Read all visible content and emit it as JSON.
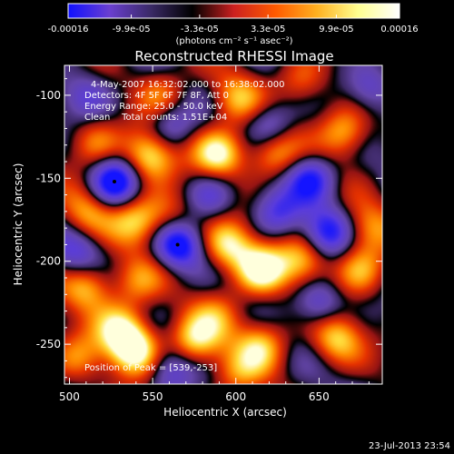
{
  "chart_data": {
    "type": "heatmap",
    "title": "Reconstructed RHESSI Image",
    "xlabel": "Heliocentric X (arcsec)",
    "ylabel": "Heliocentric Y (arcsec)",
    "xlim": [
      497,
      688
    ],
    "ylim": [
      -274,
      -82
    ],
    "xticks": [
      500,
      550,
      600,
      650
    ],
    "yticks": [
      -100,
      -150,
      -200,
      -250
    ],
    "colorbar": {
      "range": [
        -0.00016,
        0.00016
      ],
      "tick_labels": [
        "-0.00016",
        "-9.9e-05",
        "-3.3e-05",
        "3.3e-05",
        "9.9e-05",
        "0.00016"
      ],
      "units_label": "(photons cm⁻² s⁻¹ asec⁻²)",
      "colors": [
        "#1010ff",
        "#6a3fd0",
        "#3a2a66",
        "#000000",
        "#cc2020",
        "#ff5a00",
        "#ffb020",
        "#ffff90",
        "#ffffff"
      ]
    },
    "info_lines": [
      "4-May-2007 16:32:02.000 to 16:38:02.000",
      "Detectors: 4F 5F 6F 7F 8F, Att 0",
      "Energy Range: 25.0 - 50.0 keV",
      "Clean    Total counts: 1.51E+04"
    ],
    "peak_label": "Position of Peak = [539,-253]",
    "peak": [
      539,
      -253
    ],
    "markers": [
      {
        "x": 527,
        "y": -152
      },
      {
        "x": 565,
        "y": -190
      }
    ],
    "blobs": [
      {
        "x": 548,
        "y": -136,
        "v": 0.9
      },
      {
        "x": 590,
        "y": -135,
        "v": 0.95
      },
      {
        "x": 622,
        "y": -134,
        "v": 0.7
      },
      {
        "x": 665,
        "y": -122,
        "v": 0.75
      },
      {
        "x": 515,
        "y": -128,
        "v": 0.55
      },
      {
        "x": 600,
        "y": -102,
        "v": 0.6
      },
      {
        "x": 555,
        "y": -98,
        "v": 0.5
      },
      {
        "x": 640,
        "y": -92,
        "v": 0.5
      },
      {
        "x": 510,
        "y": -170,
        "v": 0.55
      },
      {
        "x": 540,
        "y": -175,
        "v": 0.7
      },
      {
        "x": 560,
        "y": -172,
        "v": 0.45
      },
      {
        "x": 595,
        "y": -190,
        "v": 0.85
      },
      {
        "x": 615,
        "y": -205,
        "v": 0.95
      },
      {
        "x": 640,
        "y": -200,
        "v": 0.65
      },
      {
        "x": 675,
        "y": -205,
        "v": 0.65
      },
      {
        "x": 510,
        "y": -215,
        "v": 0.75
      },
      {
        "x": 540,
        "y": -212,
        "v": 0.5
      },
      {
        "x": 530,
        "y": -240,
        "v": 0.7
      },
      {
        "x": 539,
        "y": -253,
        "v": 1.0
      },
      {
        "x": 575,
        "y": -248,
        "v": 0.8
      },
      {
        "x": 615,
        "y": -250,
        "v": 0.7
      },
      {
        "x": 660,
        "y": -246,
        "v": 0.75
      },
      {
        "x": 680,
        "y": -180,
        "v": 0.55
      },
      {
        "x": 505,
        "y": -258,
        "v": 0.5
      },
      {
        "x": 590,
        "y": -232,
        "v": 0.4
      },
      {
        "x": 600,
        "y": -268,
        "v": 0.45
      }
    ],
    "holes": [
      {
        "x": 527,
        "y": -152,
        "v": 1.0
      },
      {
        "x": 565,
        "y": -190,
        "v": 1.0
      },
      {
        "x": 655,
        "y": -182,
        "v": 0.8
      },
      {
        "x": 645,
        "y": -150,
        "v": 0.8
      },
      {
        "x": 620,
        "y": -118,
        "v": 0.6
      },
      {
        "x": 650,
        "y": -225,
        "v": 0.6
      },
      {
        "x": 560,
        "y": -118,
        "v": 0.5
      },
      {
        "x": 585,
        "y": -160,
        "v": 0.5
      },
      {
        "x": 505,
        "y": -195,
        "v": 0.5
      },
      {
        "x": 625,
        "y": -170,
        "v": 0.55
      },
      {
        "x": 560,
        "y": -265,
        "v": 0.5
      },
      {
        "x": 510,
        "y": -100,
        "v": 0.45
      },
      {
        "x": 680,
        "y": -95,
        "v": 0.5
      }
    ]
  },
  "footer": {
    "timestamp": "23-Jul-2013 23:54"
  }
}
